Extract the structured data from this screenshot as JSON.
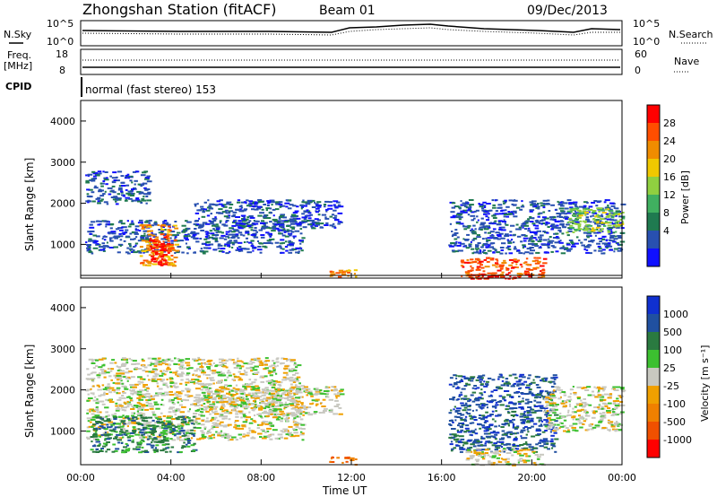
{
  "header": {
    "title": "Zhongshan Station (fitACF)",
    "beam": "Beam 01",
    "date": "09/Dec/2013"
  },
  "top_panels": {
    "nsky_label": "N.Sky",
    "nsearch_label": "N.Search",
    "noise_ticks_left": [
      "10^5",
      "10^0"
    ],
    "noise_ticks_right": [
      "10^5",
      "10^0"
    ],
    "freq_label_line1": "Freq.",
    "freq_label_line2": "[MHz]",
    "freq_ticks": [
      "18",
      "8"
    ],
    "nave_label": "Nave",
    "nave_ticks": [
      "60",
      "0"
    ],
    "cpid_label": "CPID",
    "cpid_text": "normal (fast stereo) 153"
  },
  "chart_data": [
    {
      "type": "heatmap",
      "name": "power",
      "ylabel": "Slant Range [km]",
      "yticks": [
        "1000",
        "2000",
        "3000",
        "4000"
      ],
      "y_range_km": [
        180,
        4500
      ],
      "xticks": [
        "00:00",
        "04:00",
        "08:00",
        "12:00",
        "16:00",
        "20:00",
        "00:00"
      ],
      "colorbar": {
        "label": "Power [dB]",
        "ticks": [
          "28",
          "24",
          "20",
          "16",
          "12",
          "8",
          "4"
        ],
        "colors": [
          "#ff0000",
          "#ff4e00",
          "#f08c00",
          "#f0c800",
          "#90d040",
          "#40b060",
          "#1f7a50",
          "#2850b0",
          "#1010ff"
        ]
      },
      "regions": [
        {
          "t0": 0.2,
          "t1": 3.0,
          "r0": 2000,
          "r1": 2800,
          "level": 1
        },
        {
          "t0": 0.2,
          "t1": 9.8,
          "r0": 800,
          "r1": 1600,
          "level": 1
        },
        {
          "t0": 2.6,
          "t1": 4.2,
          "r0": 500,
          "r1": 1500,
          "level": 6
        },
        {
          "t0": 3.0,
          "t1": 4.0,
          "r0": 500,
          "r1": 1200,
          "level": 8
        },
        {
          "t0": 5.0,
          "t1": 11.5,
          "r0": 1400,
          "r1": 2100,
          "level": 1
        },
        {
          "t0": 11.0,
          "t1": 12.2,
          "r0": 200,
          "r1": 400,
          "level": 6
        },
        {
          "t0": 16.3,
          "t1": 24.0,
          "r0": 800,
          "r1": 2100,
          "level": 1
        },
        {
          "t0": 16.8,
          "t1": 20.5,
          "r0": 180,
          "r1": 700,
          "level": 7
        },
        {
          "t0": 17.5,
          "t1": 19.5,
          "r0": 180,
          "r1": 300,
          "level": 8
        },
        {
          "t0": 21.5,
          "t1": 24.0,
          "r0": 1300,
          "r1": 1900,
          "level": 4
        }
      ]
    },
    {
      "type": "heatmap",
      "name": "velocity",
      "ylabel": "Slant Range [km]",
      "yticks": [
        "1000",
        "2000",
        "3000",
        "4000"
      ],
      "y_range_km": [
        180,
        4500
      ],
      "xticks": [
        "00:00",
        "04:00",
        "08:00",
        "12:00",
        "16:00",
        "20:00",
        "00:00"
      ],
      "xlabel": "Time UT",
      "colorbar": {
        "label": "Velocity [m s⁻¹]",
        "ticks": [
          "1000",
          "500",
          "100",
          "25",
          "-25",
          "-100",
          "-500",
          "-1000"
        ],
        "colors": [
          "#1030d0",
          "#2050a0",
          "#2a7a40",
          "#3cc030",
          "#c8c8c0",
          "#f0a000",
          "#f08000",
          "#f05000",
          "#ff0000"
        ]
      },
      "regions": [
        {
          "t0": 0.2,
          "t1": 9.8,
          "r0": 800,
          "r1": 2800,
          "level": 4
        },
        {
          "t0": 0.4,
          "t1": 5.0,
          "r0": 500,
          "r1": 1400,
          "level": 6
        },
        {
          "t0": 5.5,
          "t1": 11.5,
          "r0": 1400,
          "r1": 2100,
          "level": 4
        },
        {
          "t0": 11.0,
          "t1": 12.2,
          "r0": 200,
          "r1": 400,
          "level": 2
        },
        {
          "t0": 16.3,
          "t1": 21.0,
          "r0": 500,
          "r1": 2400,
          "level": 7
        },
        {
          "t0": 17.0,
          "t1": 20.5,
          "r0": 180,
          "r1": 600,
          "level": 4
        },
        {
          "t0": 20.5,
          "t1": 24.0,
          "r0": 1000,
          "r1": 2100,
          "level": 4
        }
      ]
    }
  ]
}
